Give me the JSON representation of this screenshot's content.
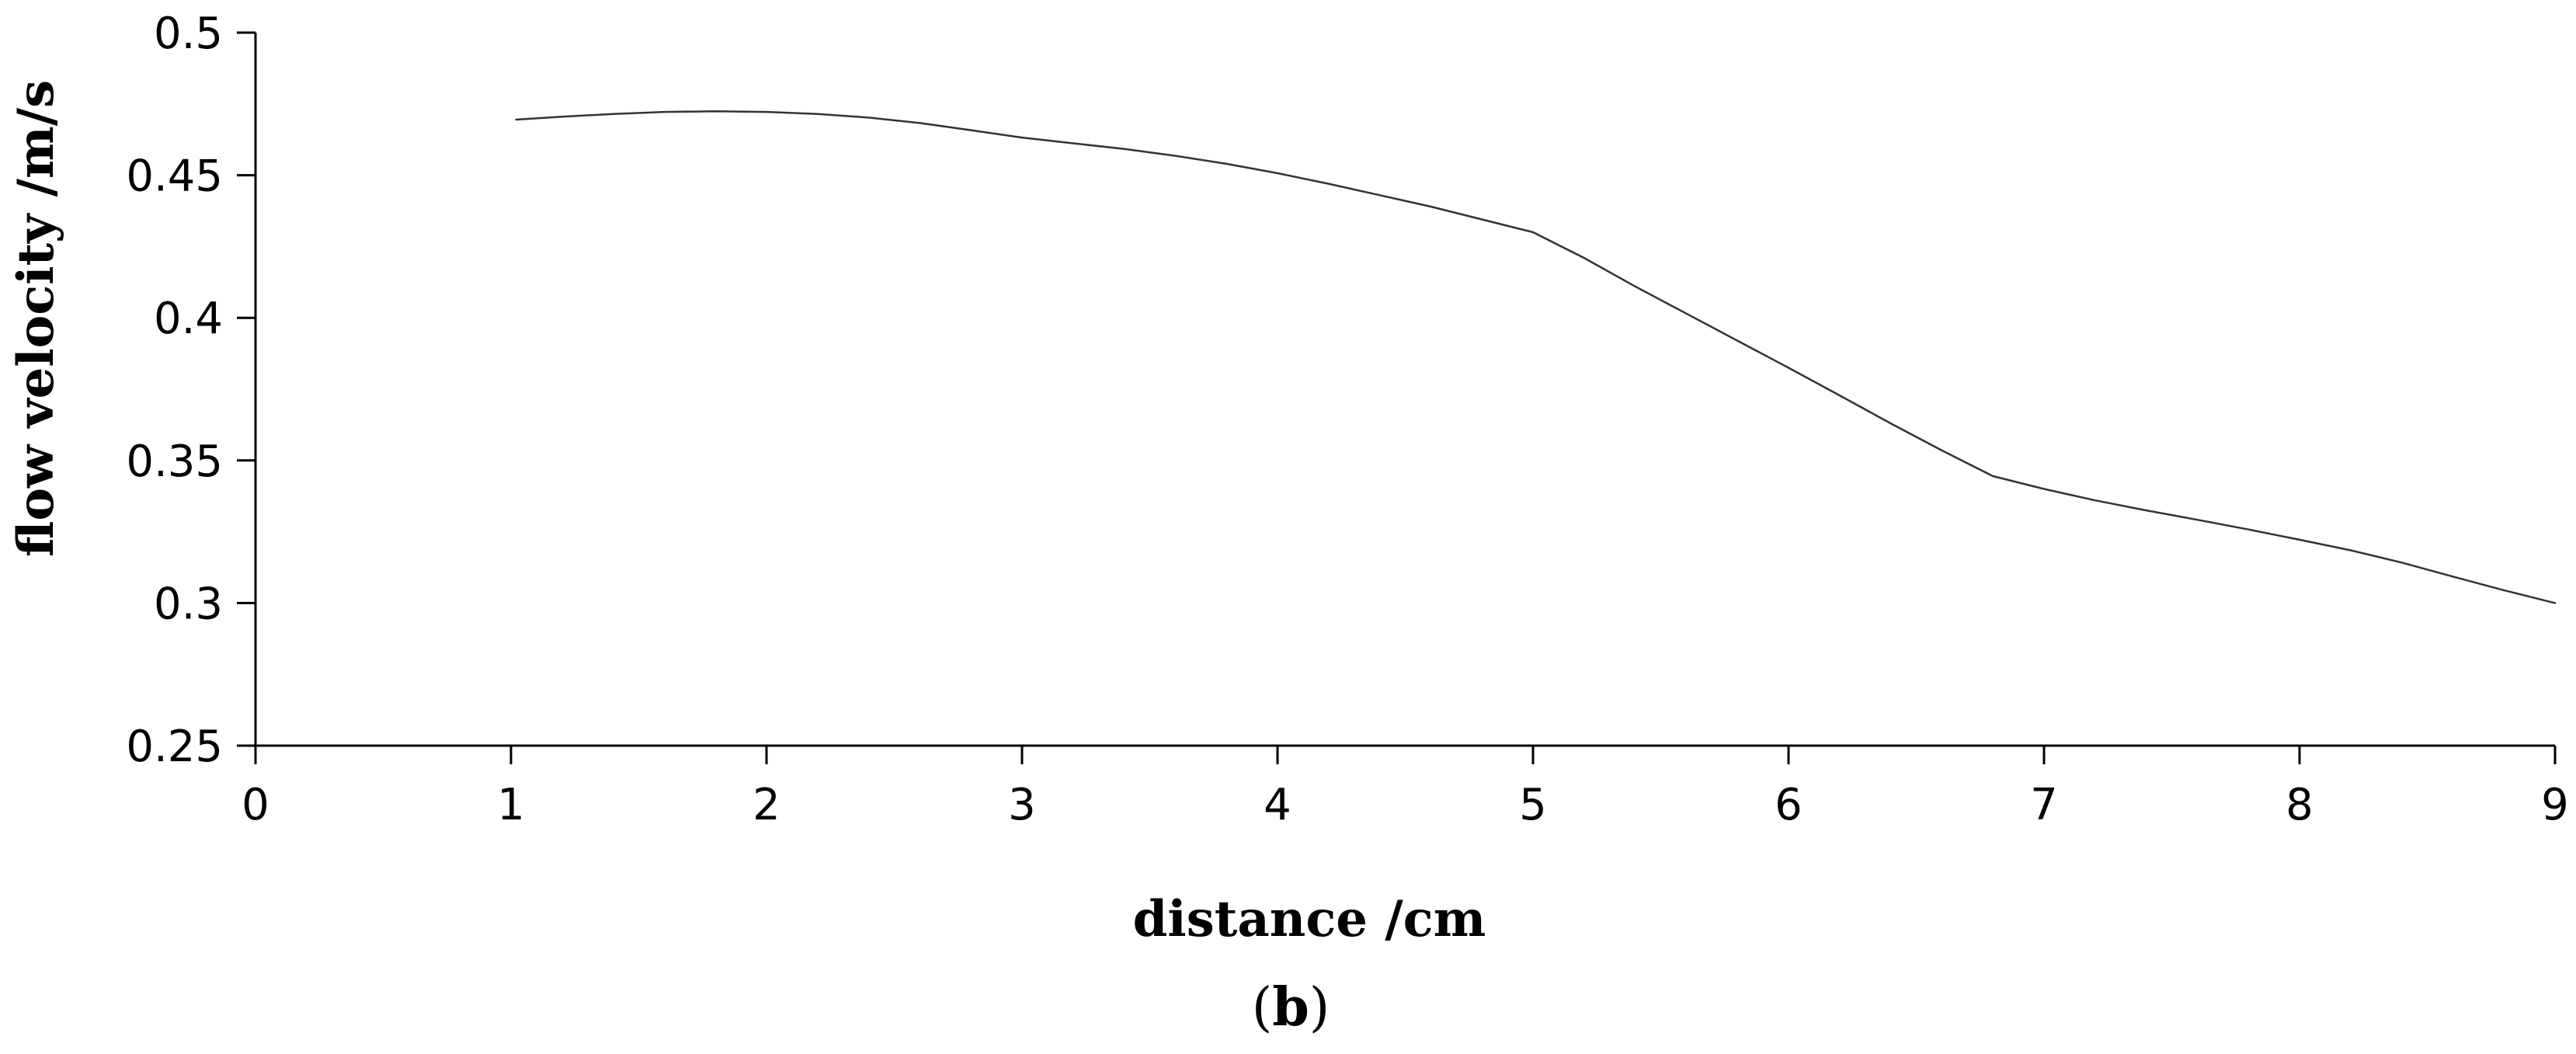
{
  "chart_data": {
    "type": "line",
    "xlabel": "distance /cm",
    "ylabel": "flow velocity /m/s",
    "caption": {
      "open": "(",
      "letter": "b",
      "close": ")"
    },
    "xlim": [
      0,
      9
    ],
    "ylim": [
      0.25,
      0.5
    ],
    "x_ticks": [
      0,
      1,
      2,
      3,
      4,
      5,
      6,
      7,
      8,
      9
    ],
    "x_tick_labels": [
      "0",
      "1",
      "2",
      "3",
      "4",
      "5",
      "6",
      "7",
      "8",
      "9"
    ],
    "y_ticks": [
      0.25,
      0.3,
      0.35,
      0.4,
      0.45,
      0.5
    ],
    "y_tick_labels": [
      "0.25",
      "0.3",
      "0.35",
      "0.4",
      "0.45",
      "0.5"
    ],
    "grid": false,
    "line_color": "#333333",
    "series": [
      {
        "x": [
          1.02,
          1.2,
          1.4,
          1.6,
          1.8,
          2.0,
          2.2,
          2.4,
          2.6,
          2.8,
          3.0,
          3.2,
          3.4,
          3.6,
          3.8,
          4.0,
          4.2,
          4.4,
          4.6,
          4.8,
          5.0,
          5.2,
          5.4,
          5.6,
          5.8,
          6.0,
          6.2,
          6.4,
          6.6,
          6.8,
          7.0,
          7.2,
          7.4,
          7.6,
          7.8,
          8.0,
          8.2,
          8.4,
          8.6,
          8.8,
          9.0
        ],
        "y": [
          0.4695,
          0.4705,
          0.4715,
          0.4722,
          0.4724,
          0.4722,
          0.4715,
          0.4702,
          0.4683,
          0.4658,
          0.4632,
          0.4612,
          0.4592,
          0.4568,
          0.454,
          0.4507,
          0.447,
          0.443,
          0.439,
          0.4345,
          0.43,
          0.421,
          0.411,
          0.4015,
          0.392,
          0.3825,
          0.3728,
          0.363,
          0.3535,
          0.3445,
          0.34,
          0.336,
          0.3325,
          0.3292,
          0.3258,
          0.3222,
          0.3185,
          0.3142,
          0.3093,
          0.3045,
          0.3
        ]
      }
    ]
  }
}
